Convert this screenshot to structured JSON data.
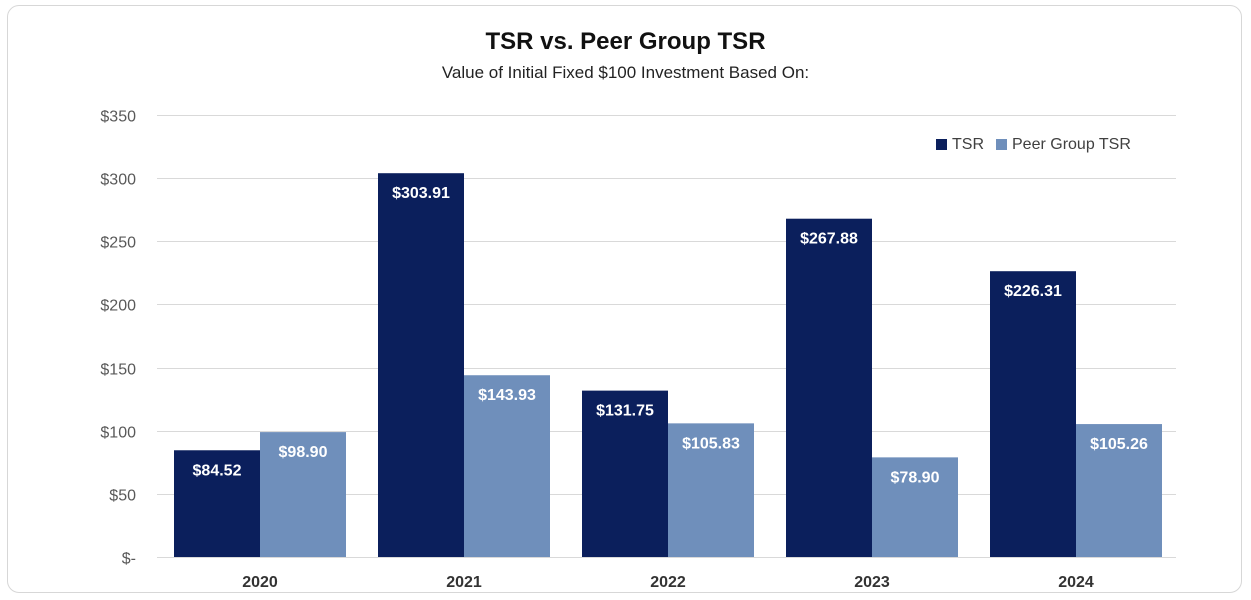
{
  "chart_data": {
    "type": "bar",
    "title": "TSR vs. Peer Group TSR",
    "subtitle": "Value of Initial Fixed $100 Investment Based On:",
    "xlabel": "",
    "ylabel": "",
    "categories": [
      "2020",
      "2021",
      "2022",
      "2023",
      "2024"
    ],
    "series": [
      {
        "name": "TSR",
        "color": "#0b1f5c",
        "values": [
          84.52,
          303.91,
          131.75,
          267.88,
          226.31
        ],
        "labels": [
          "$84.52",
          "$303.91",
          "$131.75",
          "$267.88",
          "$226.31"
        ]
      },
      {
        "name": "Peer Group TSR",
        "color": "#6f8fbb",
        "values": [
          98.9,
          143.93,
          105.83,
          78.9,
          105.26
        ],
        "labels": [
          "$98.90",
          "$143.93",
          "$105.83",
          "$78.90",
          "$105.26"
        ]
      }
    ],
    "ylim": [
      0,
      350
    ],
    "yticks": [
      0,
      50,
      100,
      150,
      200,
      250,
      300,
      350
    ],
    "ytick_labels": [
      "$-",
      "$50",
      "$100",
      "$150",
      "$200",
      "$250",
      "$300",
      "$350"
    ],
    "grid": true,
    "legend_position": "top-right"
  },
  "colors": {
    "tsr": "#0b1f5c",
    "peer": "#6f8fbb",
    "grid": "#d9d9d9",
    "tick_text": "#595959",
    "category_text": "#333333",
    "label_text": "#ffffff"
  }
}
